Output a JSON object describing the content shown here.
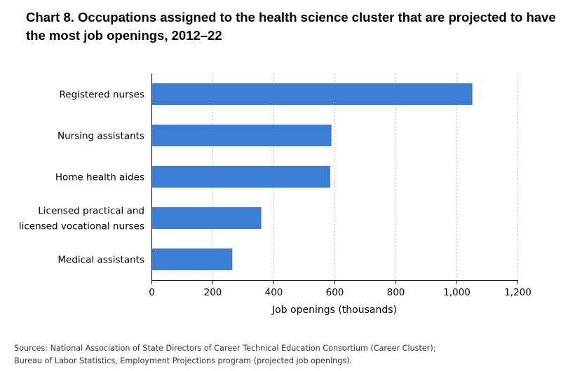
{
  "title": "Chart 8. Occupations assigned to the health science cluster that are projected to have the most job openings, 2012–22",
  "chart_data": {
    "type": "bar",
    "orientation": "horizontal",
    "categories": [
      [
        "Registered nurses"
      ],
      [
        "Nursing assistants"
      ],
      [
        "Home health aides"
      ],
      [
        "Licensed practical and",
        "licensed vocational nurses"
      ],
      [
        "Medical assistants"
      ]
    ],
    "values": [
      1052,
      590,
      586,
      360,
      265
    ],
    "xlabel": "Job openings (thousands)",
    "ylabel": "",
    "xlim": [
      0,
      1200
    ],
    "ticks": [
      0,
      200,
      400,
      600,
      800,
      1000,
      1200
    ],
    "tick_labels": [
      "0",
      "200",
      "400",
      "600",
      "800",
      "1,000",
      "1,200"
    ],
    "grid": "vertical-dotted",
    "bar_color": "#3a7fd5"
  },
  "sources": [
    "Sources: National Association of State Directors of Career Technical Education Consortium (Career Cluster);",
    "Bureau of Labor Statistics, Employment Projections program (projected job openings)."
  ]
}
